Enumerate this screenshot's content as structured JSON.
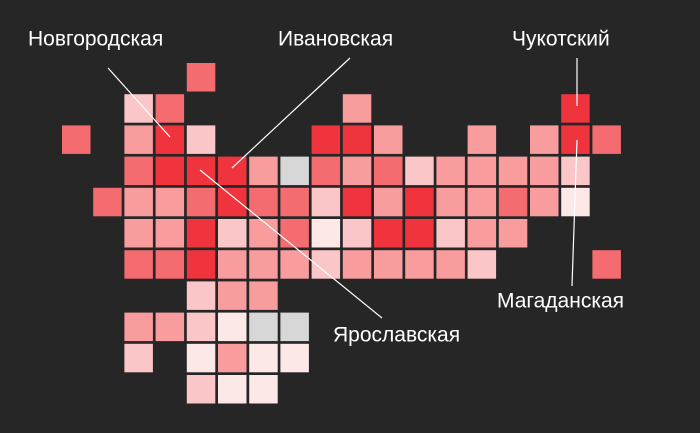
{
  "labels": [
    "Новгородская",
    "Ивановская",
    "Чукотский",
    "Магаданская",
    "Ярославская"
  ]
}
